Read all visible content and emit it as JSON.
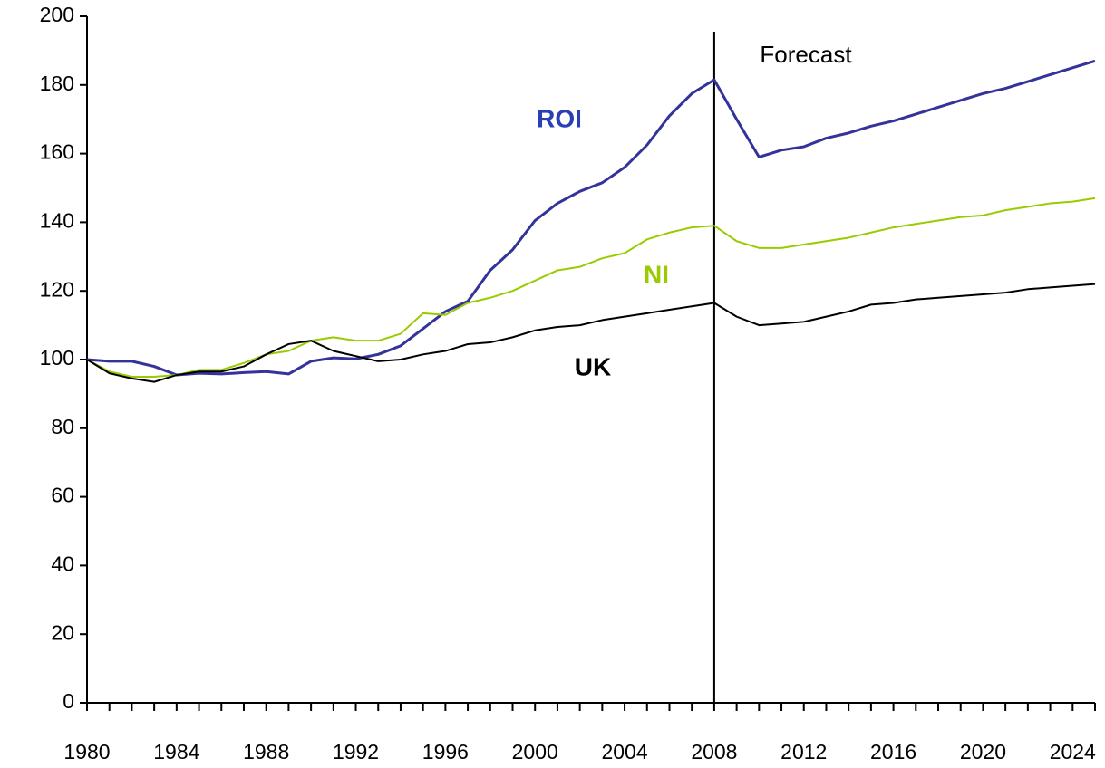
{
  "chart_data": {
    "type": "line",
    "x": [
      1980,
      1981,
      1982,
      1983,
      1984,
      1985,
      1986,
      1987,
      1988,
      1989,
      1990,
      1991,
      1992,
      1993,
      1994,
      1995,
      1996,
      1997,
      1998,
      1999,
      2000,
      2001,
      2002,
      2003,
      2004,
      2005,
      2006,
      2007,
      2008,
      2009,
      2010,
      2011,
      2012,
      2013,
      2014,
      2015,
      2016,
      2017,
      2018,
      2019,
      2020,
      2021,
      2022,
      2023,
      2024,
      2025
    ],
    "series": [
      {
        "name": "ROI",
        "color": "#333399",
        "label_color": "#2b3fb5",
        "width": 3,
        "values": [
          100,
          99.5,
          99.5,
          98,
          95.5,
          96,
          95.8,
          96.2,
          96.5,
          95.8,
          99.5,
          100.5,
          100.2,
          101.5,
          104,
          109,
          114,
          117,
          126,
          132,
          140.5,
          145.5,
          149,
          151.5,
          156,
          162.5,
          171,
          177.5,
          181.5,
          170,
          159,
          161,
          162,
          164.5,
          166,
          168,
          169.5,
          171.5,
          173.5,
          175.5,
          177.5,
          179,
          181,
          183,
          185,
          187
        ]
      },
      {
        "name": "NI",
        "color": "#99cc00",
        "label_color": "#99cc00",
        "width": 2,
        "values": [
          100,
          96.5,
          95,
          95,
          95.5,
          97,
          97,
          99,
          101.5,
          102.5,
          105.5,
          106.5,
          105.5,
          105.5,
          107.5,
          113.5,
          113,
          116.5,
          118,
          120,
          123,
          126,
          127,
          129.5,
          131,
          135,
          137,
          138.5,
          139,
          134.5,
          132.5,
          132.5,
          133.5,
          134.5,
          135.5,
          137,
          138.5,
          139.5,
          140.5,
          141.5,
          142,
          143.5,
          144.5,
          145.5,
          146,
          147
        ]
      },
      {
        "name": "UK",
        "color": "#000000",
        "label_color": "#000000",
        "width": 2,
        "values": [
          100,
          96,
          94.5,
          93.5,
          95.5,
          96.5,
          96.5,
          98,
          101.5,
          104.5,
          105.5,
          102.5,
          101,
          99.5,
          100,
          101.5,
          102.5,
          104.5,
          105,
          106.5,
          108.5,
          109.5,
          110,
          111.5,
          112.5,
          113.5,
          114.5,
          115.5,
          116.5,
          112.5,
          110,
          110.5,
          111,
          112.5,
          114,
          116,
          116.5,
          117.5,
          118,
          118.5,
          119,
          119.5,
          120.5,
          121,
          121.5,
          122
        ]
      }
    ],
    "xlim": [
      1980,
      2025
    ],
    "xticks": [
      1980,
      1984,
      1988,
      1992,
      1996,
      2000,
      2004,
      2008,
      2012,
      2016,
      2020,
      2024
    ],
    "xminorticks": [
      1980,
      1981,
      1982,
      1983,
      1984,
      1985,
      1986,
      1987,
      1988,
      1989,
      1990,
      1991,
      1992,
      1993,
      1994,
      1995,
      1996,
      1997,
      1998,
      1999,
      2000,
      2001,
      2002,
      2003,
      2004,
      2005,
      2006,
      2007,
      2008,
      2009,
      2010,
      2011,
      2012,
      2013,
      2014,
      2015,
      2016,
      2017,
      2018,
      2019,
      2020,
      2021,
      2022,
      2023,
      2024,
      2025
    ],
    "ylim": [
      0,
      200
    ],
    "yticks": [
      0,
      20,
      40,
      60,
      80,
      100,
      120,
      140,
      160,
      180,
      200
    ],
    "forecast": {
      "label": "Forecast",
      "x": 2008
    }
  }
}
